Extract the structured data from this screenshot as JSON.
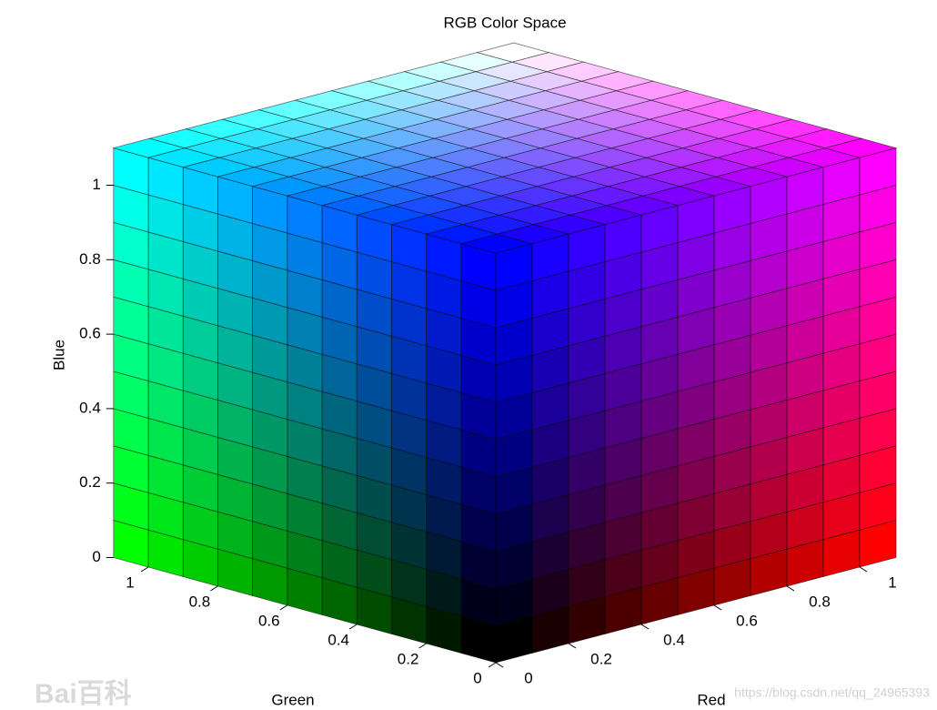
{
  "chart_data": {
    "type": "rgb-cube",
    "title": "RGB Color Space",
    "x_label": "Red",
    "y_label": "Green",
    "z_label": "Blue",
    "xlim": [
      0,
      1.1
    ],
    "ylim": [
      0,
      1.1
    ],
    "zlim": [
      0,
      1.1
    ],
    "xticks": [
      0,
      0.2,
      0.4,
      0.6,
      0.8,
      1
    ],
    "yticks": [
      0,
      0.2,
      0.4,
      0.6,
      0.8,
      1
    ],
    "zticks": [
      0,
      0.2,
      0.4,
      0.6,
      0.8,
      1
    ],
    "watermarks": [
      "Bai百科",
      "https://blog.csdn.net/qq_24965393"
    ]
  }
}
